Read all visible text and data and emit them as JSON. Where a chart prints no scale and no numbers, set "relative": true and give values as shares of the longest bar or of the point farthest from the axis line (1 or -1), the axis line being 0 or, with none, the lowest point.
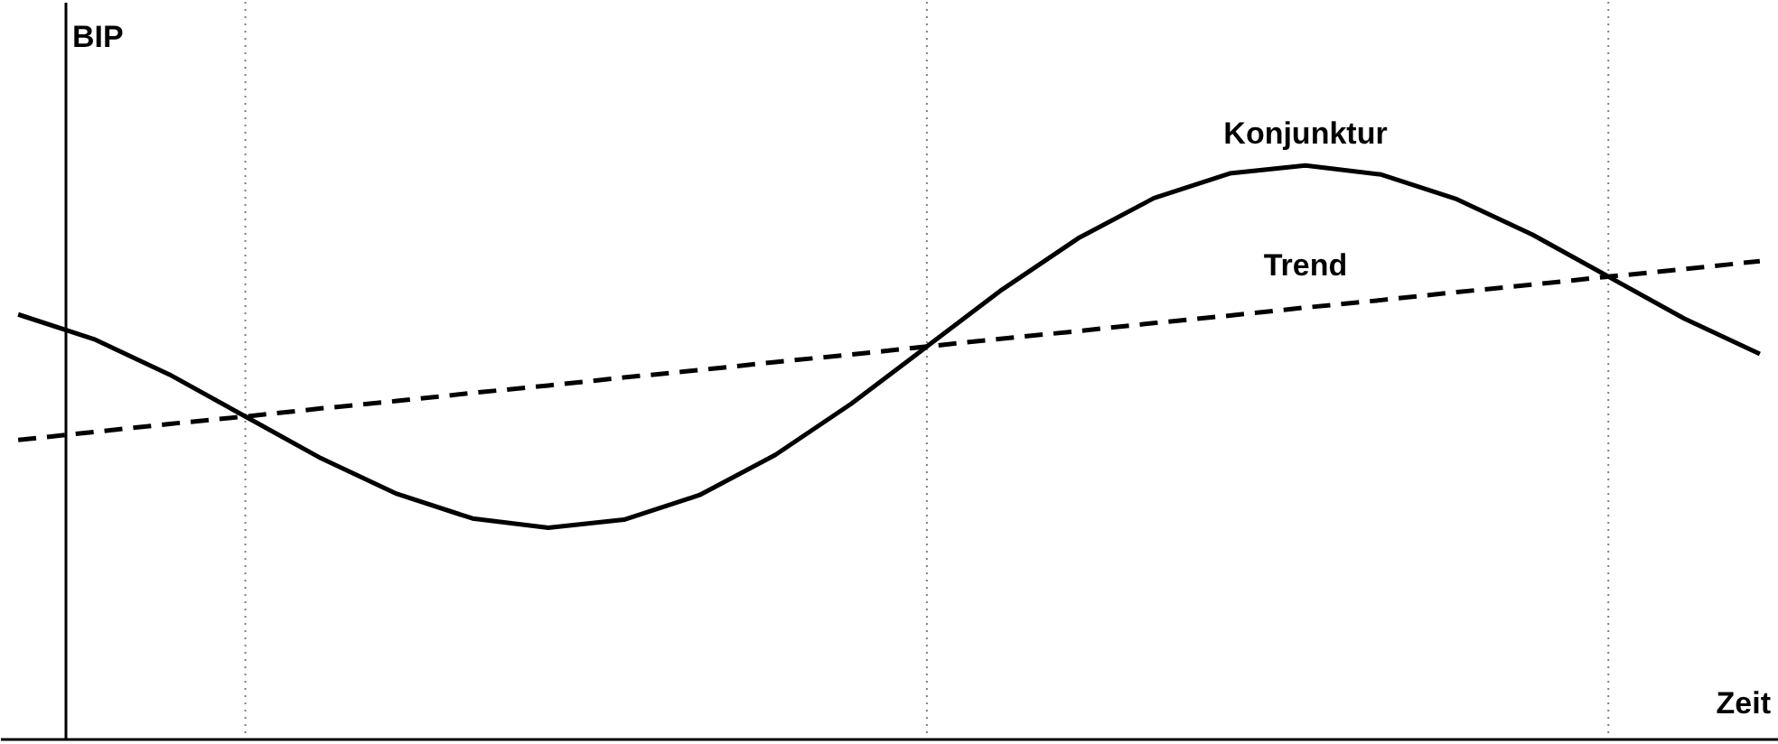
{
  "chart_data": {
    "type": "line",
    "relative": true,
    "grid": "x",
    "xlabel": "Zeit",
    "ylabel": "BIP",
    "categories": [
      null,
      null,
      null,
      null,
      null,
      null,
      null,
      null,
      null,
      null,
      null,
      null,
      null,
      null,
      null,
      null,
      null,
      null,
      null,
      null,
      null,
      null,
      null,
      null
    ],
    "series": [
      {
        "name": "Konjunktur",
        "color": "#000000",
        "line_style": "solid",
        "values": [
          0.74,
          0.697,
          0.635,
          0.562,
          0.489,
          0.427,
          0.384,
          0.368,
          0.382,
          0.425,
          0.495,
          0.584,
          0.684,
          0.784,
          0.873,
          0.943,
          0.986,
          1,
          0.984,
          0.941,
          0.879,
          0.806,
          0.733,
          0.671
        ]
      },
      {
        "name": "Trend",
        "color": "#000000",
        "line_style": "dashed",
        "values": [
          0.521,
          0.535,
          0.549,
          0.562,
          0.576,
          0.589,
          0.603,
          0.616,
          0.63,
          0.643,
          0.657,
          0.67,
          0.684,
          0.698,
          0.711,
          0.725,
          0.738,
          0.752,
          0.765,
          0.779,
          0.792,
          0.806,
          0.819,
          0.833
        ]
      }
    ]
  }
}
